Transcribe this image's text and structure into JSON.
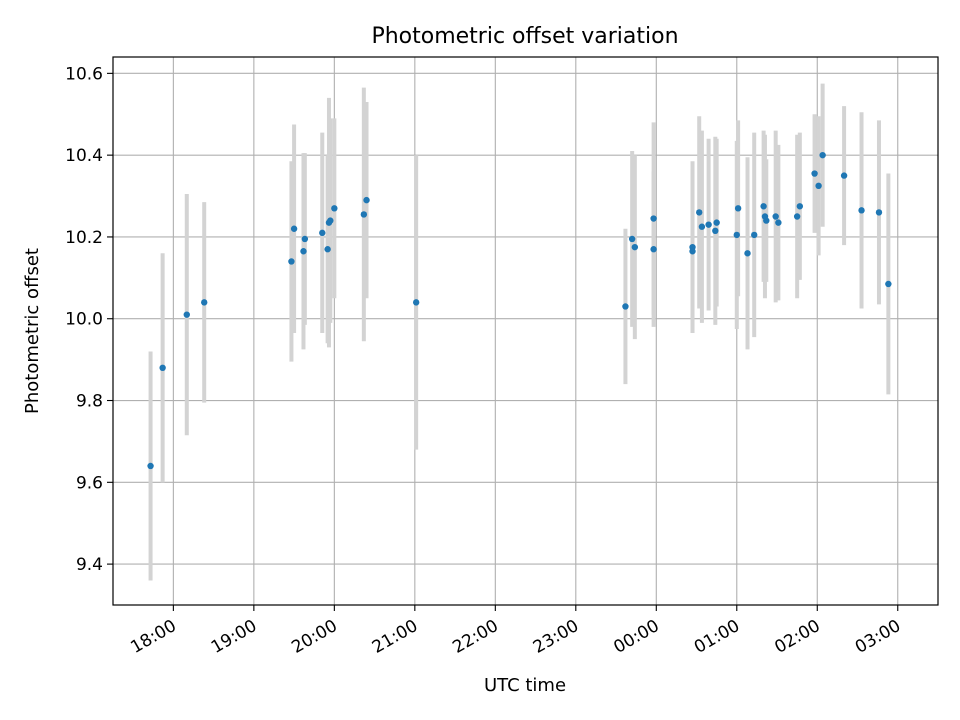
{
  "chart_data": {
    "type": "scatter",
    "title": "Photometric offset variation",
    "xlabel": "UTC time",
    "ylabel": "Photometric offset",
    "grid": true,
    "x_type": "time",
    "xlim": [
      "17:15",
      "03:30"
    ],
    "ylim": [
      9.3,
      10.64
    ],
    "x_ticks": [
      "18:00",
      "19:00",
      "20:00",
      "21:00",
      "22:00",
      "23:00",
      "00:00",
      "01:00",
      "02:00",
      "03:00"
    ],
    "y_ticks": [
      "9.4",
      "9.6",
      "9.8",
      "10.0",
      "10.2",
      "10.4",
      "10.6"
    ],
    "colors": {
      "points": "#1f77b4",
      "errorbars": "#d3d3d3",
      "grid": "#b0b0b0"
    },
    "series": [
      {
        "points": [
          {
            "x": "17:43",
            "y": 9.64,
            "yerr": 0.28
          },
          {
            "x": "17:52",
            "y": 9.88,
            "yerr": 0.28
          },
          {
            "x": "18:10",
            "y": 10.01,
            "yerr": 0.295
          },
          {
            "x": "18:23",
            "y": 10.04,
            "yerr": 0.245
          },
          {
            "x": "19:28",
            "y": 10.14,
            "yerr": 0.245
          },
          {
            "x": "19:30",
            "y": 10.22,
            "yerr": 0.255
          },
          {
            "x": "19:37",
            "y": 10.165,
            "yerr": 0.24
          },
          {
            "x": "19:38",
            "y": 10.195,
            "yerr": 0.21
          },
          {
            "x": "19:51",
            "y": 10.21,
            "yerr": 0.245
          },
          {
            "x": "19:55",
            "y": 10.17,
            "yerr": 0.23
          },
          {
            "x": "19:56",
            "y": 10.235,
            "yerr": 0.305
          },
          {
            "x": "19:57",
            "y": 10.24,
            "yerr": 0.25
          },
          {
            "x": "20:00",
            "y": 10.27,
            "yerr": 0.22
          },
          {
            "x": "20:22",
            "y": 10.255,
            "yerr": 0.31
          },
          {
            "x": "20:24",
            "y": 10.29,
            "yerr": 0.24
          },
          {
            "x": "21:01",
            "y": 10.04,
            "yerr": 0.36
          },
          {
            "x": "23:37",
            "y": 10.03,
            "yerr": 0.19
          },
          {
            "x": "23:42",
            "y": 10.195,
            "yerr": 0.215
          },
          {
            "x": "23:44",
            "y": 10.175,
            "yerr": 0.225
          },
          {
            "x": "23:58",
            "y": 10.17,
            "yerr": 0.19
          },
          {
            "x": "23:58",
            "y": 10.245,
            "yerr": 0.235
          },
          {
            "x": "00:27",
            "y": 10.175,
            "yerr": 0.21
          },
          {
            "x": "00:27",
            "y": 10.165,
            "yerr": 0.2
          },
          {
            "x": "00:32",
            "y": 10.26,
            "yerr": 0.235
          },
          {
            "x": "00:34",
            "y": 10.225,
            "yerr": 0.235
          },
          {
            "x": "00:39",
            "y": 10.23,
            "yerr": 0.21
          },
          {
            "x": "00:44",
            "y": 10.215,
            "yerr": 0.23
          },
          {
            "x": "00:45",
            "y": 10.235,
            "yerr": 0.205
          },
          {
            "x": "01:00",
            "y": 10.205,
            "yerr": 0.23
          },
          {
            "x": "01:01",
            "y": 10.27,
            "yerr": 0.215
          },
          {
            "x": "01:08",
            "y": 10.16,
            "yerr": 0.235
          },
          {
            "x": "01:13",
            "y": 10.205,
            "yerr": 0.25
          },
          {
            "x": "01:20",
            "y": 10.275,
            "yerr": 0.185
          },
          {
            "x": "01:21",
            "y": 10.25,
            "yerr": 0.2
          },
          {
            "x": "01:22",
            "y": 10.24,
            "yerr": 0.15
          },
          {
            "x": "01:29",
            "y": 10.25,
            "yerr": 0.21
          },
          {
            "x": "01:31",
            "y": 10.235,
            "yerr": 0.19
          },
          {
            "x": "01:45",
            "y": 10.25,
            "yerr": 0.2
          },
          {
            "x": "01:47",
            "y": 10.275,
            "yerr": 0.18
          },
          {
            "x": "01:58",
            "y": 10.355,
            "yerr": 0.145
          },
          {
            "x": "02:01",
            "y": 10.325,
            "yerr": 0.17
          },
          {
            "x": "02:04",
            "y": 10.4,
            "yerr": 0.175
          },
          {
            "x": "02:20",
            "y": 10.35,
            "yerr": 0.17
          },
          {
            "x": "02:33",
            "y": 10.265,
            "yerr": 0.24
          },
          {
            "x": "02:46",
            "y": 10.26,
            "yerr": 0.225
          },
          {
            "x": "02:53",
            "y": 10.085,
            "yerr": 0.27
          }
        ]
      }
    ]
  }
}
